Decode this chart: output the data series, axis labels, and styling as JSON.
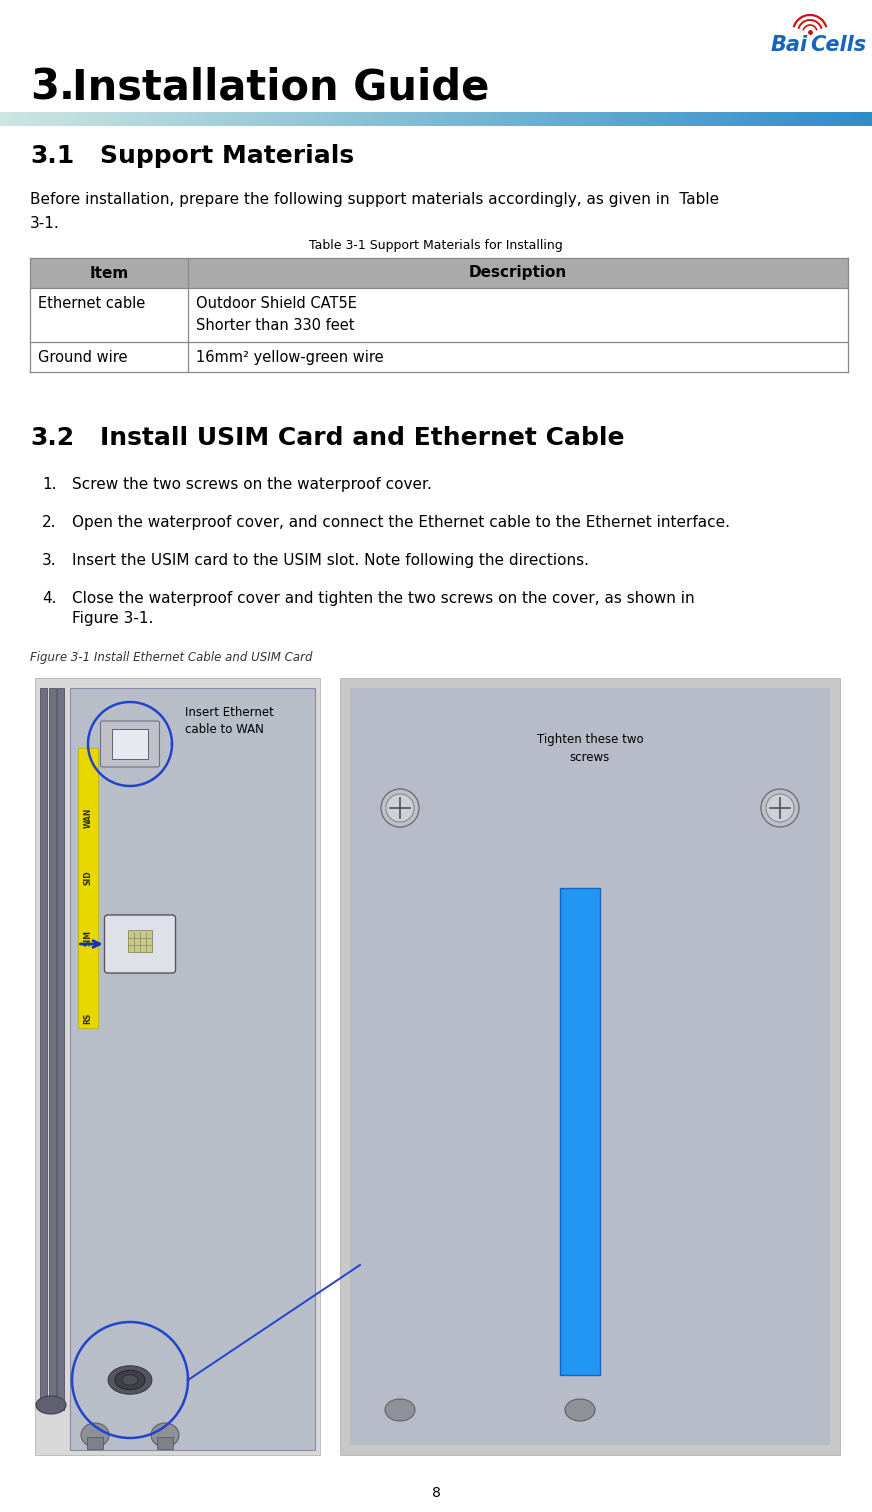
{
  "page_number": "8",
  "chapter_number": "3.",
  "chapter_title": "Installation Guide",
  "section1_number": "3.1",
  "section1_title": "Support Materials",
  "section1_body_line1": "Before installation, prepare the following support materials accordingly, as given in  Table",
  "section1_body_line2": "3-1.",
  "table_caption": "Table 3-1 Support Materials for Installing",
  "table_headers": [
    "Item",
    "Description"
  ],
  "table_rows": [
    [
      "Ethernet cable",
      "Outdoor Shield CAT5E",
      "Shorter than 330 feet"
    ],
    [
      "Ground wire",
      "16mm² yellow-green wire",
      ""
    ]
  ],
  "section2_number": "3.2",
  "section2_title": "Install USIM Card and Ethernet Cable",
  "steps": [
    "Screw the two screws on the waterproof cover.",
    "Open the waterproof cover, and connect the Ethernet cable to the Ethernet interface.",
    "Insert the USIM card to the USIM slot. Note following the directions.",
    "Close the waterproof cover and tighten the two screws on the cover, as shown in"
  ],
  "step4_line2": "Figure 3-1.",
  "figure_caption": "Figure 3-1 Install Ethernet Cable and USIM Card",
  "label_ethernet": "Insert Ethernet\ncable to WAN",
  "label_screws": "Tighten these two\nscrews",
  "header_bar_color_left": "#AADDEE",
  "header_bar_color_right": "#1E7CB8",
  "table_header_bg": "#AAAAAA",
  "table_border_color": "#888888",
  "text_color": "#000000",
  "body_font_size": 11,
  "step_font_size": 11,
  "bg_color": "#FFFFFF"
}
